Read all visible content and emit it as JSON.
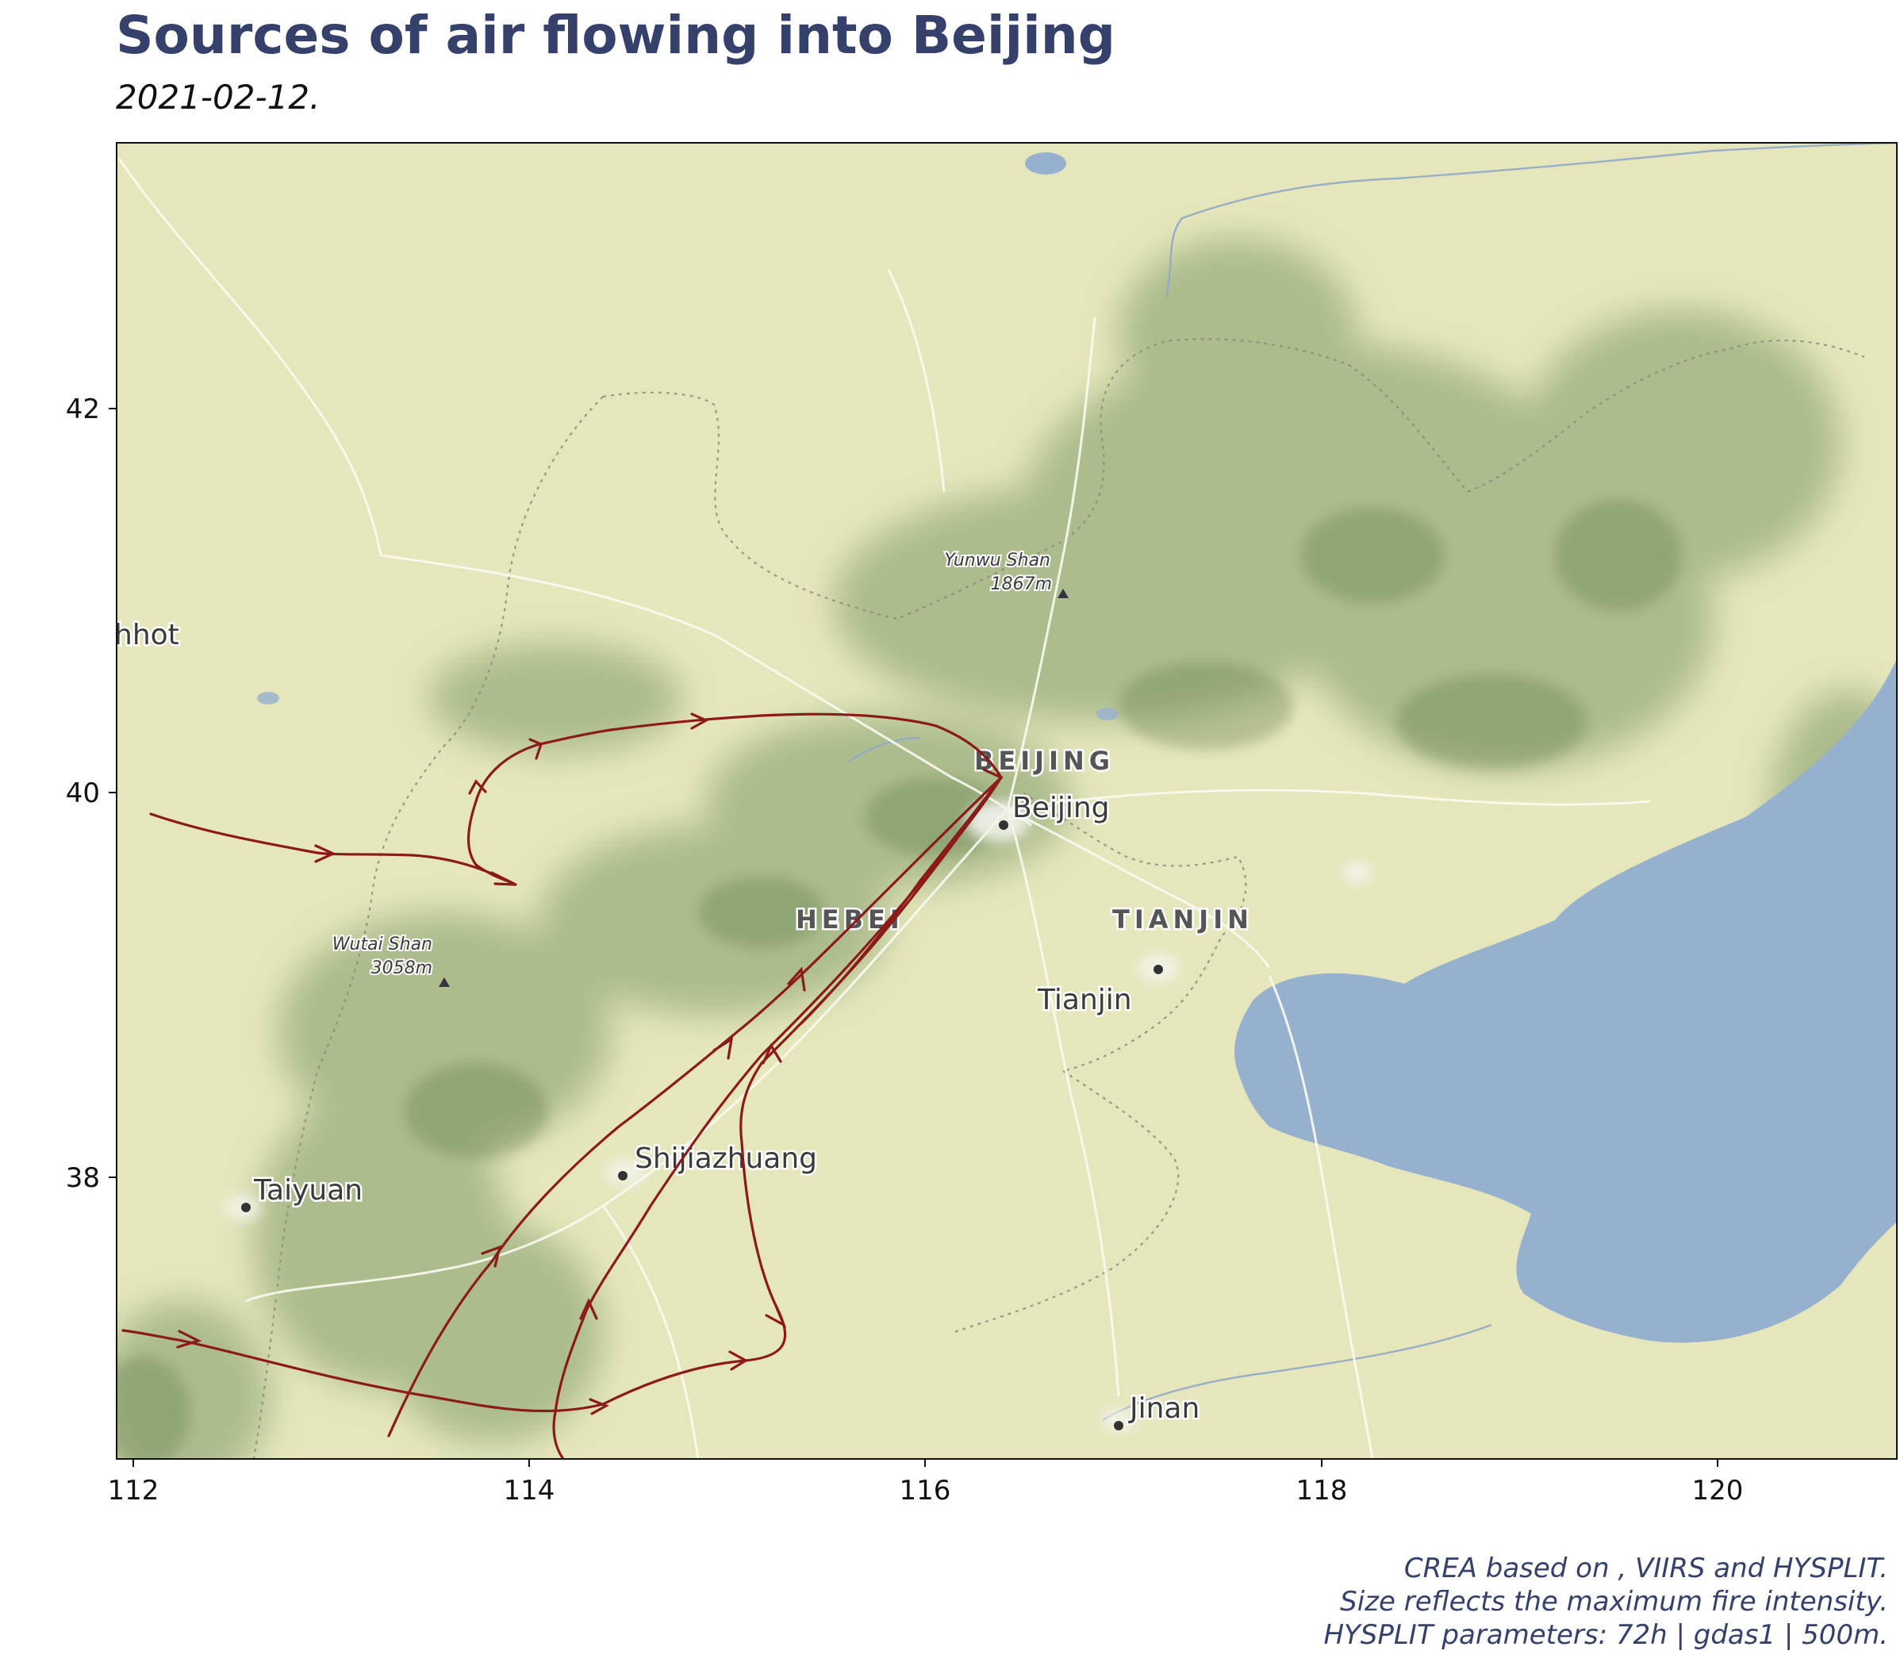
{
  "title": "Sources of air flowing into Beijing",
  "subtitle": "2021-02-12.",
  "caption": {
    "line1": "CREA based on , VIIRS and HYSPLIT.",
    "line2": "Size reflects the maximum fire intensity.",
    "line3": "HYSPLIT parameters: 72h | gdas1 | 500m."
  },
  "axes": {
    "x_ticks": [
      "112",
      "114",
      "116",
      "118",
      "120"
    ],
    "y_ticks": [
      "42",
      "40",
      "38"
    ]
  },
  "map_labels": {
    "provinces": [
      "BEIJING",
      "HEBEI",
      "TIANJIN"
    ],
    "cities": [
      "Beijing",
      "Tianjin",
      "Shijiazhuang",
      "Taiyuan",
      "Jinan",
      "hhot"
    ],
    "peaks": [
      {
        "name": "Yunwu Shan",
        "elevation": "1867m"
      },
      {
        "name": "Wutai Shan",
        "elevation": "3058m"
      }
    ]
  },
  "colors": {
    "title": "#35406b",
    "trajectory": "#8b1a1a",
    "land": "#e6e6bc",
    "water": "#96b1cd",
    "mountain": "#6f8c5a"
  },
  "trajectory_endpoint": {
    "name": "Beijing",
    "lon": 116.4,
    "lat": 40.05
  }
}
